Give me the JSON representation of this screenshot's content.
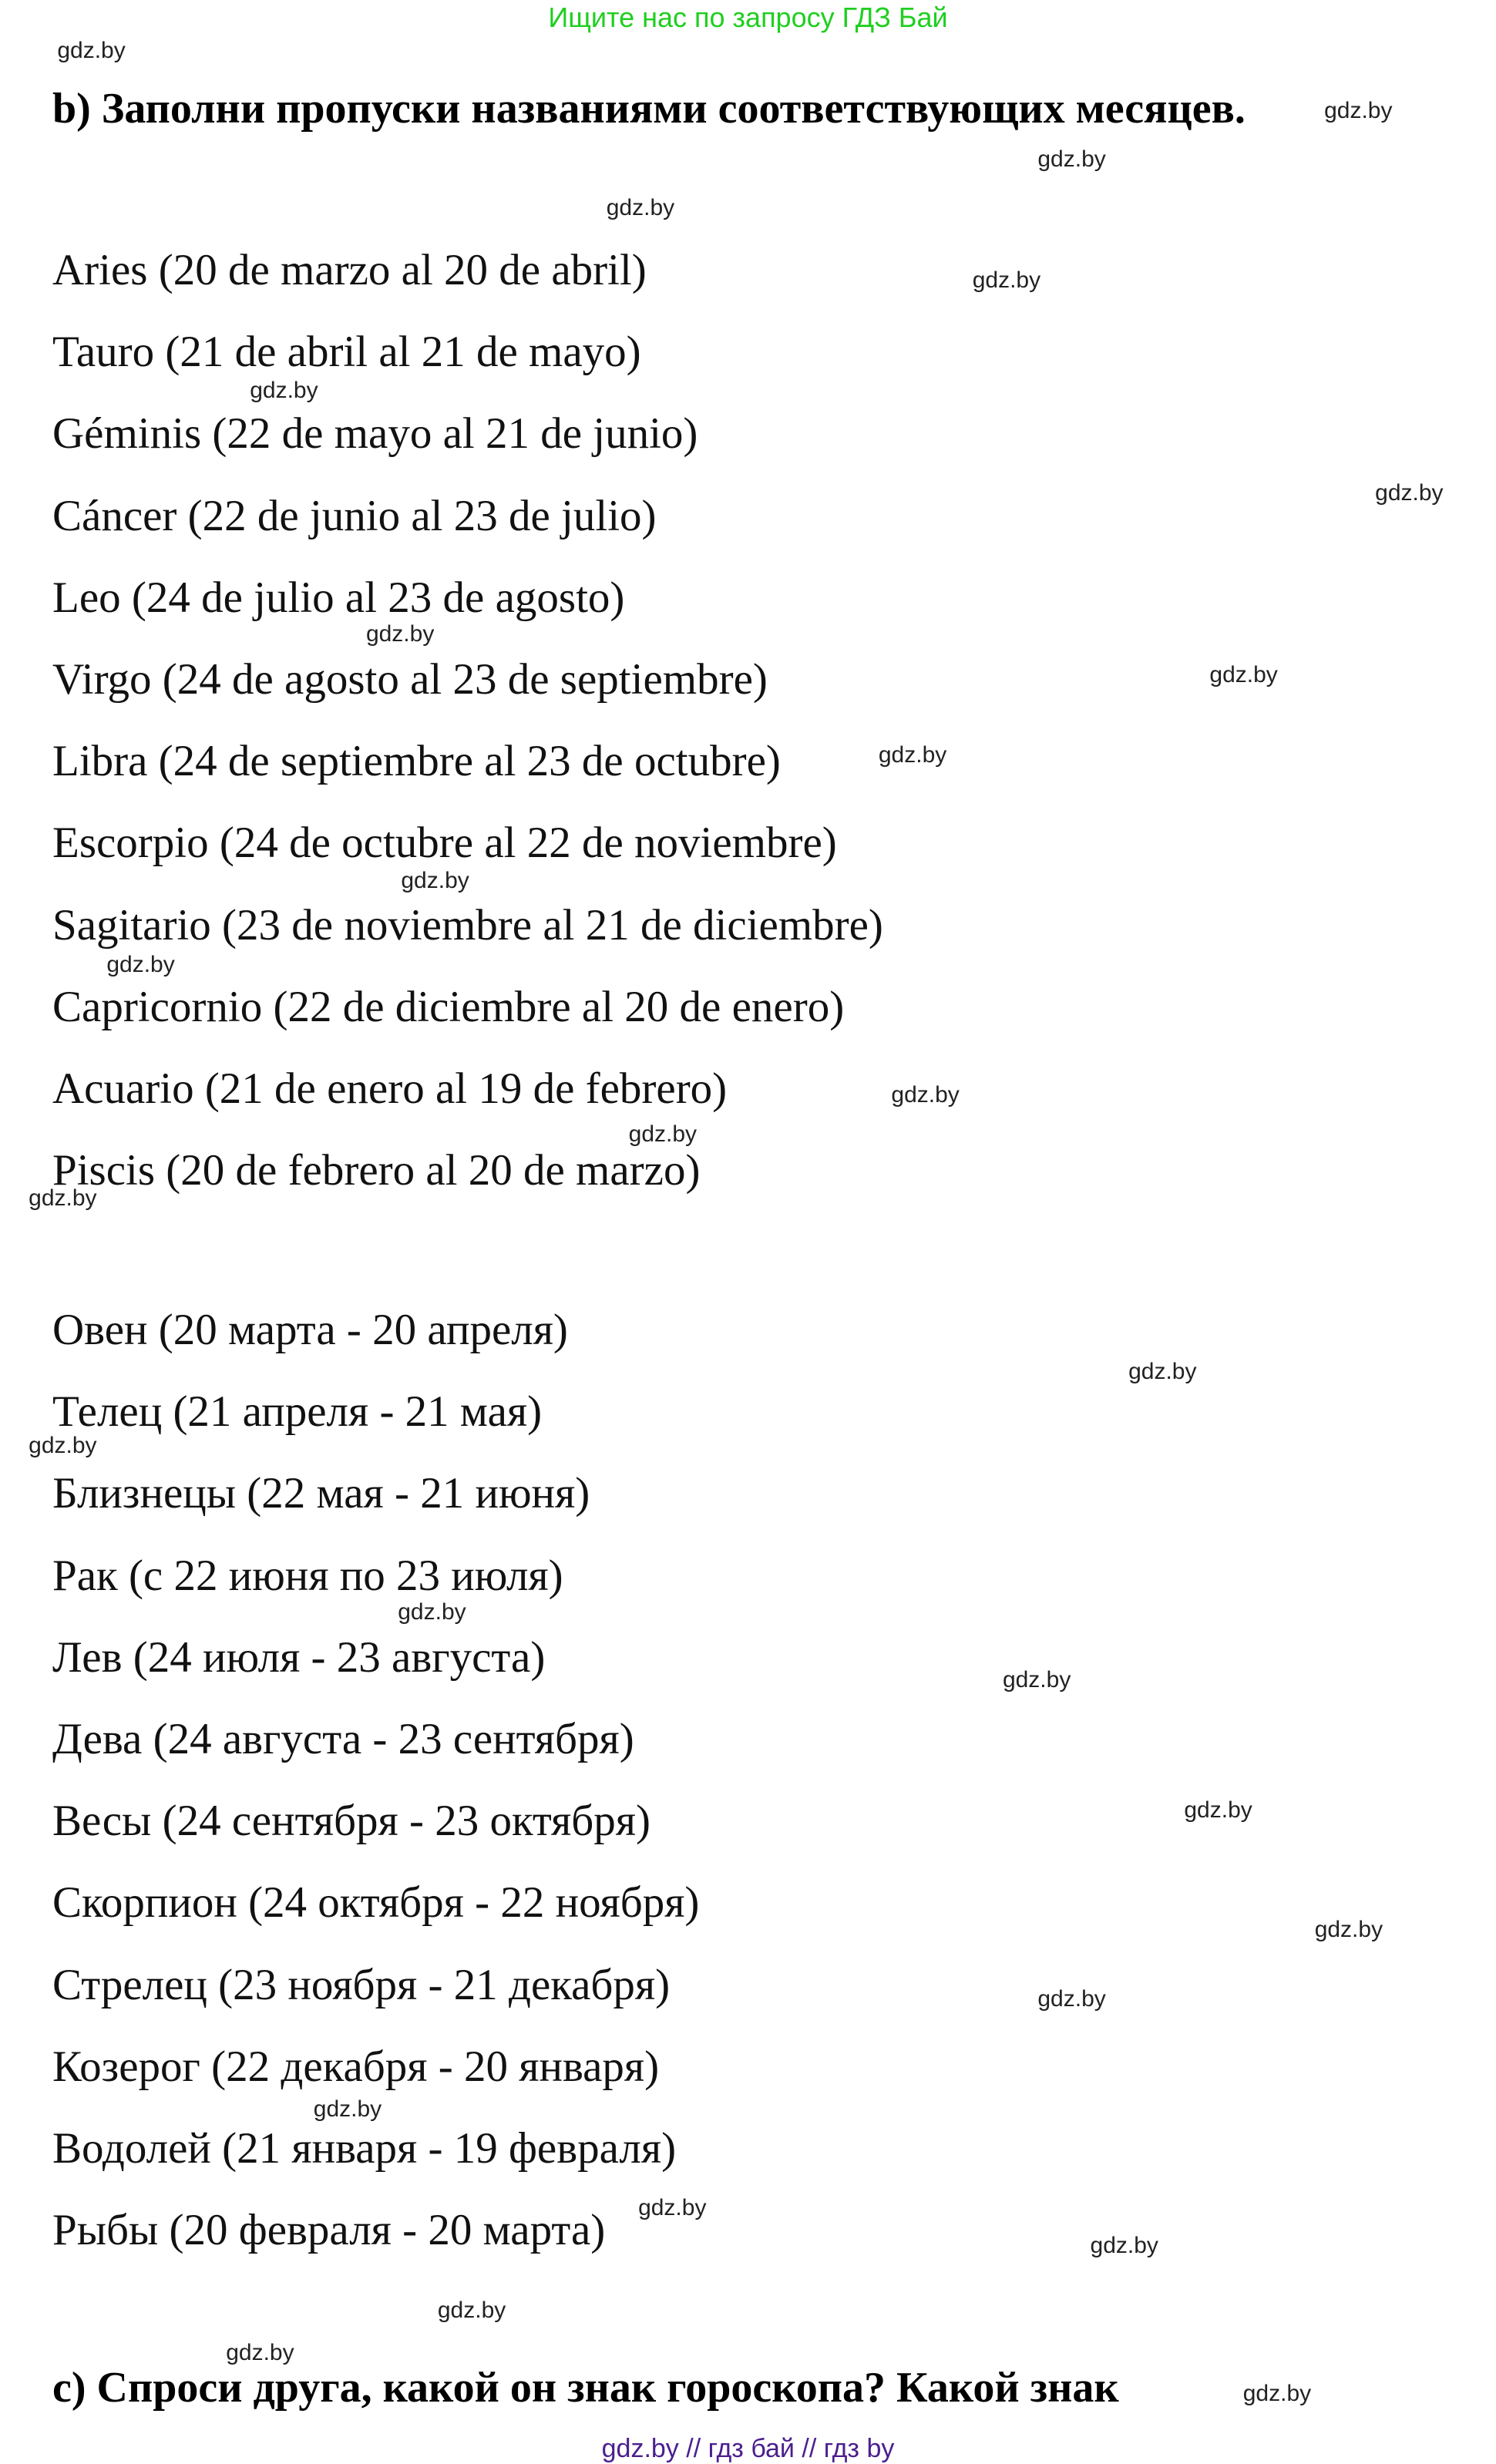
{
  "top_note": "Ищите нас по запросу ГДЗ Бай",
  "heading_b": "b) Заполни пропуски названиями соответствующих месяцев.",
  "spanish_signs": [
    "Aries (20 de marzo al 20 de abril)",
    "Tauro (21 de abril al 21 de mayo)",
    "Géminis (22 de mayo al 21 de junio)",
    "Cáncer (22 de junio al 23 de julio)",
    "Leo (24 de julio al 23 de agosto)",
    "Virgo (24 de agosto al 23 de septiembre)",
    "Libra (24 de septiembre al 23 de octubre)",
    "Escorpio (24 de octubre al 22 de noviembre)",
    "Sagitario (23 de noviembre al 21 de diciembre)",
    "Capricornio (22 de diciembre al 20 de enero)",
    "Acuario (21 de enero al 19 de febrero)",
    "Piscis (20 de febrero al 20 de marzo)"
  ],
  "russian_signs": [
    "Овен (20 марта - 20 апреля)",
    "Телец (21 апреля - 21 мая)",
    "Близнецы (22 мая - 21 июня)",
    "Рак (с 22 июня по 23 июля)",
    "Лев (24 июля - 23 августа)",
    "Дева (24 августа - 23 сентября)",
    "Весы (24 сентября - 23 октября)",
    "Скорпион (24 октября - 22 ноября)",
    "Стрелец (23 ноября - 21 декабря)",
    "Козерог (22 декабря - 20 января)",
    "Водолей (21 января - 19 февраля)",
    "Рыбы (20 февраля - 20 марта)"
  ],
  "heading_c": "c) Спроси друга, какой он знак гороскопа? Какой знак",
  "watermark": "gdz.by",
  "footer": "gdz.by  //  гдз бай  //  гдз by",
  "colors": {
    "top_note": "#1fcf1f",
    "footer": "#4b1f8f"
  }
}
